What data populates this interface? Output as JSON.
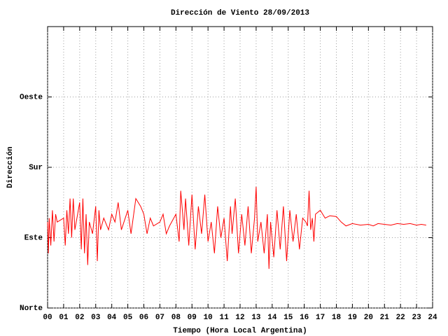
{
  "chart_data": {
    "type": "line",
    "title": "Dirección de Viento 28/09/2013",
    "xlabel": "Tiempo (Hora Local Argentina)",
    "ylabel": "Dirección",
    "grid": true,
    "xlim": [
      0,
      24
    ],
    "xticks": [
      {
        "value": 0,
        "label": "00"
      },
      {
        "value": 1,
        "label": "01"
      },
      {
        "value": 2,
        "label": "02"
      },
      {
        "value": 3,
        "label": "03"
      },
      {
        "value": 4,
        "label": "04"
      },
      {
        "value": 5,
        "label": "05"
      },
      {
        "value": 6,
        "label": "06"
      },
      {
        "value": 7,
        "label": "07"
      },
      {
        "value": 8,
        "label": "08"
      },
      {
        "value": 9,
        "label": "09"
      },
      10,
      11,
      12,
      13,
      14,
      15,
      16,
      17,
      18,
      19,
      20,
      21,
      22,
      23,
      24
    ],
    "ylim": [
      0,
      360
    ],
    "yticks": [
      {
        "value": 0,
        "label": "Norte"
      },
      {
        "value": 90,
        "label": "Este"
      },
      {
        "value": 180,
        "label": "Sur"
      },
      {
        "value": 270,
        "label": "Oeste"
      }
    ],
    "x": [
      0.0,
      0.05,
      0.1,
      0.2,
      0.3,
      0.4,
      0.5,
      0.6,
      1.0,
      1.1,
      1.2,
      1.3,
      1.4,
      1.5,
      1.6,
      1.7,
      2.0,
      2.1,
      2.2,
      2.3,
      2.4,
      2.5,
      2.6,
      2.8,
      3.0,
      3.1,
      3.2,
      3.3,
      3.5,
      3.8,
      4.0,
      4.2,
      4.4,
      4.6,
      5.0,
      5.2,
      5.5,
      5.8,
      6.0,
      6.2,
      6.4,
      6.6,
      7.0,
      7.2,
      7.4,
      7.6,
      8.0,
      8.2,
      8.3,
      8.5,
      8.6,
      8.8,
      9.0,
      9.2,
      9.4,
      9.6,
      9.8,
      10.0,
      10.2,
      10.4,
      10.6,
      10.8,
      11.0,
      11.2,
      11.4,
      11.5,
      11.7,
      11.9,
      12.1,
      12.3,
      12.5,
      12.7,
      12.9,
      13.0,
      13.1,
      13.3,
      13.5,
      13.7,
      13.8,
      13.9,
      14.1,
      14.3,
      14.5,
      14.7,
      14.9,
      15.1,
      15.3,
      15.5,
      15.7,
      15.9,
      16.1,
      16.2,
      16.3,
      16.4,
      16.5,
      16.6,
      16.7,
      17.0,
      17.3,
      17.6,
      18.0,
      18.3,
      18.6,
      19.0,
      19.5,
      20.0,
      20.3,
      20.6,
      21.0,
      21.4,
      21.8,
      22.2,
      22.6,
      23.0,
      23.3,
      23.6
    ],
    "series": [
      {
        "name": "Dirección",
        "color": "#ff0000",
        "values": [
          110,
          70,
          115,
          80,
          125,
          85,
          120,
          110,
          115,
          80,
          125,
          95,
          140,
          90,
          140,
          100,
          135,
          75,
          140,
          70,
          120,
          55,
          110,
          95,
          130,
          60,
          125,
          100,
          115,
          100,
          120,
          110,
          135,
          100,
          125,
          95,
          140,
          130,
          120,
          95,
          115,
          105,
          110,
          120,
          95,
          105,
          120,
          85,
          150,
          100,
          140,
          80,
          145,
          75,
          130,
          95,
          145,
          85,
          110,
          70,
          130,
          90,
          115,
          60,
          130,
          95,
          140,
          70,
          120,
          80,
          130,
          70,
          115,
          155,
          85,
          110,
          70,
          120,
          50,
          110,
          65,
          125,
          75,
          130,
          60,
          125,
          85,
          120,
          75,
          115,
          110,
          105,
          150,
          100,
          115,
          85,
          120,
          125,
          115,
          118,
          117,
          110,
          105,
          108,
          106,
          107,
          105,
          108,
          107,
          106,
          108,
          107,
          108,
          106,
          107,
          106
        ]
      }
    ]
  }
}
